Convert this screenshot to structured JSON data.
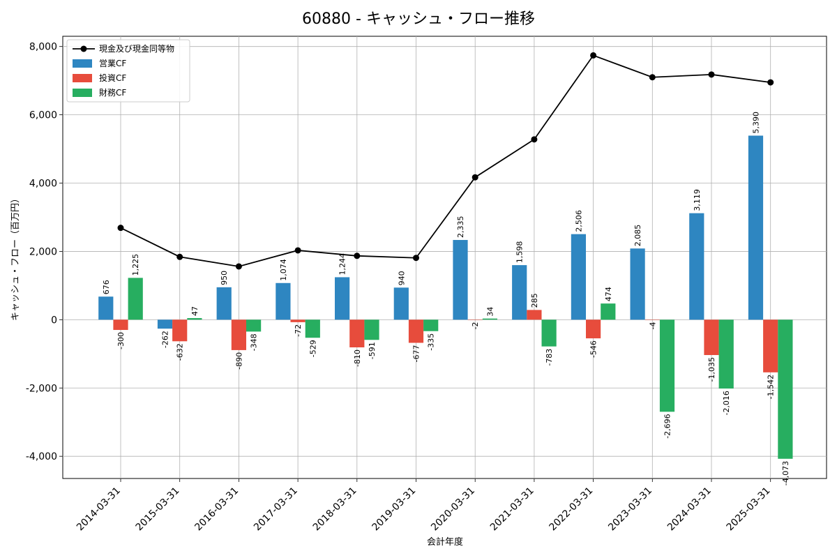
{
  "chart_data": {
    "type": "bar",
    "title": "60880 - キャッシュ・フロー推移",
    "xlabel": "会計年度",
    "ylabel": "キャッシュ・フロー（百万円）",
    "ylim": [
      -4650,
      8300
    ],
    "yticks": [
      -4000,
      -2000,
      0,
      2000,
      4000,
      6000,
      8000
    ],
    "ytick_labels": [
      "-4,000",
      "-2,000",
      "0",
      "2,000",
      "4,000",
      "6,000",
      "8,000"
    ],
    "grid": true,
    "legend_position": "top-left",
    "categories": [
      "2014-03-31",
      "2015-03-31",
      "2016-03-31",
      "2017-03-31",
      "2018-03-31",
      "2019-03-31",
      "2020-03-31",
      "2021-03-31",
      "2022-03-31",
      "2023-03-31",
      "2024-03-31",
      "2025-03-31"
    ],
    "series": [
      {
        "name": "営業CF",
        "type": "bar",
        "color": "#2e86c1",
        "values": [
          676,
          -262,
          950,
          1074,
          1244,
          940,
          2335,
          1598,
          2506,
          2085,
          3119,
          5390
        ],
        "labels": [
          "676",
          "-262",
          "950",
          "1,074",
          "1,244",
          "940",
          "2,335",
          "1,598",
          "2,506",
          "2,085",
          "3,119",
          "5,390"
        ]
      },
      {
        "name": "投資CF",
        "type": "bar",
        "color": "#e74c3c",
        "values": [
          -300,
          -632,
          -890,
          -72,
          -810,
          -677,
          -2,
          285,
          -546,
          -4,
          -1035,
          -1542
        ],
        "labels": [
          "-300",
          "-632",
          "-890",
          "-72",
          "-810",
          "-677",
          "-2",
          "285",
          "-546",
          "-4",
          "-1,035",
          "-1,542"
        ]
      },
      {
        "name": "財務CF",
        "type": "bar",
        "color": "#27ae60",
        "values": [
          1225,
          47,
          -348,
          -529,
          -591,
          -335,
          34,
          -783,
          474,
          -2696,
          -2016,
          -4073
        ],
        "labels": [
          "1,225",
          "47",
          "-348",
          "-529",
          "-591",
          "-335",
          "34",
          "-783",
          "474",
          "-2,696",
          "-2,016",
          "-4,073"
        ]
      },
      {
        "name": "現金及び現金同等物",
        "type": "line",
        "color": "#000000",
        "values": [
          2690,
          1840,
          1560,
          2030,
          1870,
          1810,
          4170,
          5280,
          7740,
          7100,
          7180,
          6950
        ]
      }
    ]
  }
}
